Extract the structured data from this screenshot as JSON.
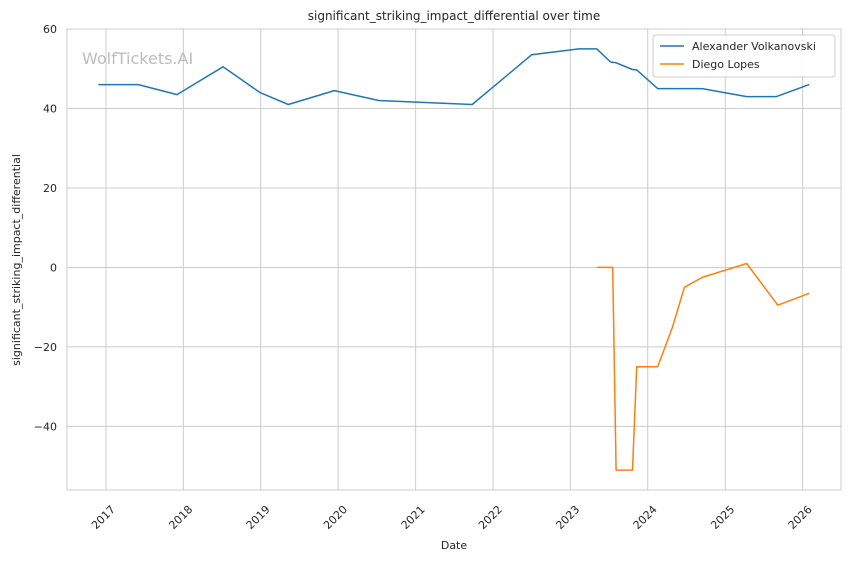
{
  "chart_data": {
    "type": "line",
    "title": "significant_striking_impact_differential over time",
    "xlabel": "Date",
    "ylabel": "significant_striking_impact_differential",
    "watermark": "WolfTickets.AI",
    "x_ticks": [
      "2017",
      "2018",
      "2019",
      "2020",
      "2021",
      "2022",
      "2023",
      "2024",
      "2025",
      "2026"
    ],
    "y_ticks": [
      "60",
      "40",
      "20",
      "0",
      "−20",
      "−40"
    ],
    "xlim": [
      "2016-07-01",
      "2026-07-01"
    ],
    "ylim": [
      -56,
      60
    ],
    "grid": true,
    "legend_position": "top-right",
    "colors": {
      "blue": "#1f77b4",
      "orange": "#ff7f0e",
      "grid": "#cccccc",
      "frame": "#cccccc"
    },
    "series": [
      {
        "name": "Alexander Volkanovski",
        "color": "#1f77b4",
        "points": [
          [
            "2016-11-26",
            46
          ],
          [
            "2017-06-03",
            46
          ],
          [
            "2017-12-02",
            43.5
          ],
          [
            "2018-07-07",
            50.5
          ],
          [
            "2018-12-29",
            44
          ],
          [
            "2019-05-11",
            41
          ],
          [
            "2019-12-14",
            44.5
          ],
          [
            "2020-07-11",
            42
          ],
          [
            "2021-09-25",
            41
          ],
          [
            "2022-07-02",
            53.5
          ],
          [
            "2023-02-11",
            55
          ],
          [
            "2023-05-06",
            55
          ],
          [
            "2023-07-10",
            51.7
          ],
          [
            "2023-08-05",
            51.5
          ],
          [
            "2023-10-21",
            49.8
          ],
          [
            "2023-11-10",
            49.7
          ],
          [
            "2024-02-17",
            45
          ],
          [
            "2024-09-14",
            45
          ],
          [
            "2025-04-12",
            43
          ],
          [
            "2025-08-30",
            43
          ],
          [
            "2026-02-01",
            46
          ]
        ]
      },
      {
        "name": "Diego Lopes",
        "color": "#ff7f0e",
        "points": [
          [
            "2023-05-06",
            0
          ],
          [
            "2023-06-20",
            0
          ],
          [
            "2023-07-20",
            0
          ],
          [
            "2023-08-05",
            -51
          ],
          [
            "2023-10-21",
            -51
          ],
          [
            "2023-11-10",
            -25
          ],
          [
            "2024-02-17",
            -25
          ],
          [
            "2024-04-27",
            -15
          ],
          [
            "2024-06-22",
            -5
          ],
          [
            "2024-09-14",
            -2.5
          ],
          [
            "2025-04-12",
            1
          ],
          [
            "2025-09-06",
            -9.5
          ],
          [
            "2026-02-01",
            -6.5
          ]
        ]
      }
    ]
  }
}
